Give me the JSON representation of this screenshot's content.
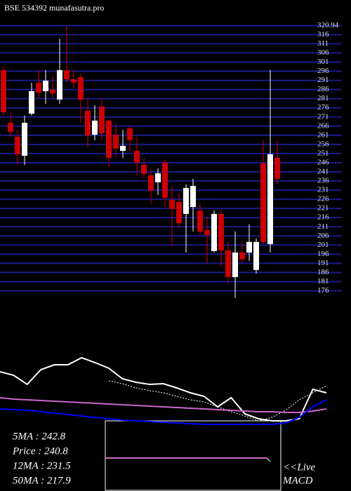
{
  "chart_data": {
    "type": "candlestick",
    "title": "BSE 534392 munafasutra.pro",
    "ylim": [
      172,
      321.5
    ],
    "yticks": [
      320.94,
      316,
      311,
      306,
      301,
      296,
      291,
      286,
      281,
      276,
      271,
      266,
      261,
      256,
      251,
      246,
      241,
      236,
      231,
      226,
      221,
      216,
      211,
      206,
      201,
      196,
      191,
      186,
      181,
      176
    ],
    "grid": true,
    "up_color": "#ffffff",
    "down_color": "#cc0000",
    "grid_color": "#1a1a8c",
    "open": [
      296.6,
      267.8,
      260.2,
      249.8,
      272.8,
      289.7,
      285.1,
      285.9,
      280.5,
      296.6,
      291.6,
      292.8,
      274.4,
      261.3,
      276.7,
      269.0,
      261.3,
      252.5,
      264.8,
      252.5,
      244.8,
      239.1,
      235.3,
      246.0,
      225.7,
      224.5,
      218.0,
      221.8,
      219.9,
      209.2,
      197.7,
      218.0,
      198.1,
      183.5,
      196.9,
      196.9,
      187.4,
      245.6,
      201.5,
      248.7
    ],
    "high": [
      298.5,
      273.6,
      264.0,
      271.7,
      289.7,
      296.6,
      296.6,
      293.5,
      313.8,
      320.4,
      296.6,
      294.7,
      281.3,
      277.4,
      281.3,
      269.8,
      267.8,
      264.0,
      265.9,
      260.2,
      248.7,
      242.9,
      242.9,
      247.5,
      233.3,
      229.5,
      234.1,
      237.2,
      223.8,
      216.1,
      219.9,
      219.9,
      202.7,
      208.4,
      202.7,
      212.3,
      204.6,
      258.3,
      296.6,
      258.3
    ],
    "low": [
      271.7,
      260.2,
      244.8,
      244.8,
      271.7,
      281.3,
      278.2,
      281.3,
      278.2,
      289.7,
      287.0,
      267.8,
      254.4,
      258.3,
      258.3,
      243.7,
      248.7,
      248.7,
      252.5,
      239.1,
      237.2,
      223.8,
      228.4,
      221.8,
      200.8,
      210.3,
      196.9,
      208.4,
      206.5,
      191.2,
      196.9,
      189.3,
      179.7,
      172.0,
      191.2,
      192.3,
      185.4,
      201.5,
      196.9,
      234.5
    ],
    "close": [
      273.6,
      262.9,
      250.6,
      267.8,
      285.1,
      284.3,
      290.8,
      283.9,
      296.6,
      291.6,
      289.7,
      280.5,
      260.9,
      269.0,
      262.1,
      248.7,
      253.7,
      255.2,
      258.3,
      246.0,
      239.9,
      230.7,
      240.2,
      226.8,
      220.7,
      213.0,
      232.2,
      233.3,
      208.4,
      206.5,
      218.0,
      198.1,
      183.5,
      196.9,
      193.1,
      202.7,
      202.7,
      202.7,
      250.6,
      237.2
    ]
  },
  "indicator_panel": {
    "series": [
      {
        "color": "#ffffff",
        "style": "solid",
        "values": [
          75,
          70,
          57,
          78,
          85,
          85,
          95,
          88,
          80,
          65,
          60,
          57,
          58,
          52,
          45,
          40,
          25,
          38,
          15,
          8,
          5,
          5,
          8,
          50,
          45
        ]
      },
      {
        "color": "#ffffff",
        "style": "dotted",
        "values": [
          null,
          null,
          null,
          null,
          null,
          null,
          null,
          null,
          62,
          58,
          52,
          48,
          45,
          40,
          35,
          32,
          25,
          18,
          12,
          5,
          10,
          20,
          35,
          45,
          55
        ]
      },
      {
        "color": "#cc66cc",
        "style": "solid",
        "values": [
          38,
          36,
          35,
          34,
          33,
          32,
          31,
          30,
          29,
          28,
          27,
          26,
          25,
          24,
          23,
          22,
          21,
          20,
          19,
          18,
          18,
          17,
          17,
          19,
          22
        ]
      },
      {
        "color": "#0000ff",
        "style": "solid",
        "values": [
          22,
          21,
          20,
          18,
          16,
          14,
          12,
          10,
          8,
          6,
          5,
          4,
          3,
          2,
          1,
          0,
          0,
          0,
          0,
          0,
          0,
          2,
          10,
          25,
          35
        ]
      }
    ]
  },
  "info": [
    "5MA : 242.8",
    "Price : 240.8",
    "12MA : 231.5",
    "50MA : 217.9"
  ],
  "live": "<<Live",
  "macd": "MACD"
}
